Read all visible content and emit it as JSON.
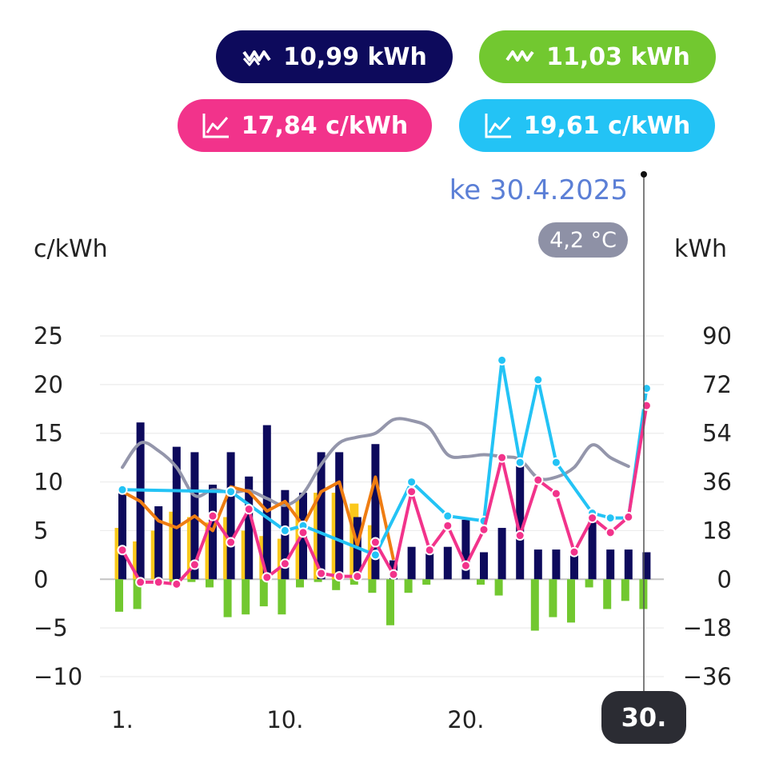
{
  "summary": {
    "consumption": {
      "value": "10,99 kWh",
      "icon": "high-voltage-icon",
      "color": "#0d0a5c"
    },
    "production": {
      "value": "11,03 kWh",
      "icon": "high-voltage-icon",
      "color": "#72c830"
    },
    "price_buy": {
      "value": "17,84 c/kWh",
      "icon": "line-chart-icon",
      "color": "#f2338b"
    },
    "price_sell": {
      "value": "19,61 c/kWh",
      "icon": "line-chart-icon",
      "color": "#23c3f5"
    }
  },
  "selection": {
    "date": "ke 30.4.2025",
    "temperature": "4,2 °C",
    "day_label": "30."
  },
  "chart_data": {
    "type": "bar",
    "left_unit": "c/kWh",
    "right_unit": "kWh",
    "left_ticks": [
      "25",
      "20",
      "15",
      "10",
      "5",
      "0",
      "−5",
      "−10"
    ],
    "right_ticks": [
      "90",
      "72",
      "54",
      "36",
      "18",
      "0",
      "−18",
      "−36"
    ],
    "left_range": [
      -10,
      25
    ],
    "right_range": [
      -36,
      90
    ],
    "x_ticks": [
      {
        "day": 1,
        "label": "1."
      },
      {
        "day": 10,
        "label": "10."
      },
      {
        "day": 20,
        "label": "20."
      }
    ],
    "days": [
      1,
      2,
      3,
      4,
      5,
      6,
      7,
      8,
      9,
      10,
      11,
      12,
      13,
      14,
      15,
      16,
      17,
      18,
      19,
      20,
      21,
      22,
      23,
      24,
      25,
      26,
      27,
      28,
      29,
      30
    ],
    "series": [
      {
        "name": "consumption_kwh",
        "kind": "bar",
        "axis": "right",
        "color": "#0d0a5c",
        "values": [
          33,
          58,
          27,
          49,
          47,
          35,
          47,
          38,
          57,
          33,
          32,
          47,
          47,
          23,
          50,
          7,
          12,
          11,
          12,
          22,
          10,
          19,
          42,
          11,
          11,
          11,
          22,
          11,
          11,
          10
        ]
      },
      {
        "name": "solar_kwh",
        "kind": "bar",
        "axis": "right",
        "color": "#fbc81b",
        "values": [
          19,
          14,
          18,
          25,
          23,
          21,
          23,
          18,
          16,
          15,
          30,
          32,
          32,
          28,
          20,
          0,
          0,
          0,
          0,
          0,
          0,
          0,
          0,
          0,
          0,
          0,
          0,
          0,
          0,
          0
        ]
      },
      {
        "name": "production_kwh",
        "kind": "bar",
        "axis": "right",
        "color": "#72c830",
        "values": [
          -12,
          -11,
          0,
          -1,
          -1,
          -3,
          -14,
          -13,
          -10,
          -13,
          -3,
          -1,
          -4,
          -2,
          -5,
          -17,
          -5,
          -2,
          0,
          0,
          -2,
          -6,
          0,
          -19,
          -14,
          -16,
          -3,
          -11,
          -8,
          -11
        ]
      },
      {
        "name": "temperature_trend",
        "kind": "line",
        "axis": "left",
        "color": "#9496ab",
        "values": [
          11.5,
          14.0,
          13.2,
          11.5,
          8.6,
          9.2,
          8.9,
          9.1,
          8.3,
          7.6,
          8.8,
          11.8,
          14.0,
          14.6,
          15.0,
          16.4,
          16.3,
          15.5,
          12.8,
          12.6,
          12.8,
          12.6,
          12.3,
          10.4,
          10.5,
          11.5,
          13.8,
          12.5,
          11.6,
          null
        ]
      },
      {
        "name": "spot_price",
        "kind": "line",
        "axis": "left",
        "color": "#ef7d12",
        "values": [
          9.0,
          8.0,
          6.0,
          5.3,
          6.5,
          5.0,
          9.5,
          9.0,
          7.0,
          8.0,
          5.5,
          9.0,
          10.0,
          3.5,
          10.5,
          2.0,
          null,
          null,
          null,
          null,
          null,
          null,
          null,
          null,
          null,
          null,
          null,
          null,
          null,
          null
        ]
      },
      {
        "name": "price_sell",
        "kind": "line",
        "axis": "left",
        "color": "#23c3f5",
        "values": [
          9.2,
          null,
          null,
          null,
          null,
          null,
          9.0,
          null,
          null,
          5.0,
          5.5,
          null,
          null,
          null,
          2.5,
          null,
          10.0,
          null,
          6.5,
          null,
          6.0,
          22.5,
          12.0,
          20.5,
          12.0,
          null,
          6.8,
          6.3,
          6.3,
          19.61
        ]
      },
      {
        "name": "price_buy",
        "kind": "line",
        "axis": "left",
        "color": "#f2338b",
        "values": [
          3.0,
          -0.3,
          -0.3,
          -0.5,
          1.5,
          6.5,
          3.8,
          7.2,
          0.2,
          1.6,
          4.8,
          0.6,
          0.3,
          0.3,
          3.8,
          0.5,
          9.0,
          3.0,
          5.5,
          1.4,
          5.1,
          12.5,
          4.5,
          10.2,
          8.8,
          2.8,
          6.3,
          4.8,
          6.4,
          17.84
        ]
      }
    ]
  }
}
